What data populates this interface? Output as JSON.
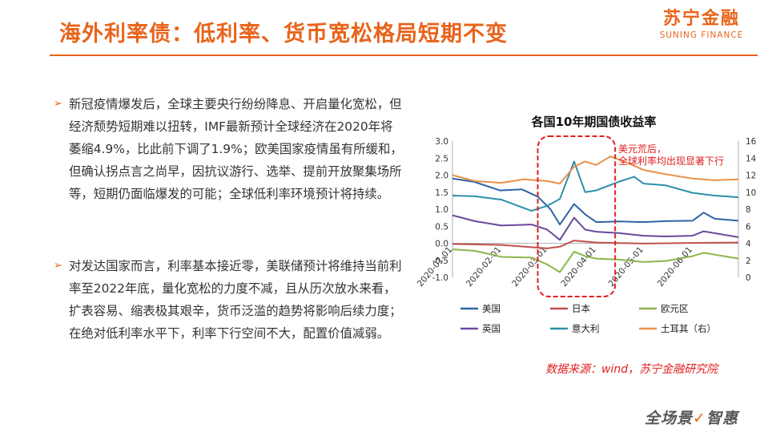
{
  "header": {
    "title": "海外利率债：低利率、货币宽松格局短期不变"
  },
  "logo": {
    "cn": "苏宁金融",
    "en": "SUNING FINANCE"
  },
  "text": {
    "p1": "新冠疫情爆发后，全球主要央行纷纷降息、开启量化宽松，但经济颓势短期难以扭转，IMF最新预计全球经济在2020年将萎缩4.9%，比此前下调了1.9%；欧美国家疫情虽有所缓和，但确认拐点言之尚早，因抗议游行、选举、提前开放聚集场所等，短期仍面临爆发的可能；全球低利率环境预计将持续。",
    "p2": "对发达国家而言，利率基本接近零，美联储预计将维持当前利率至2022年底，量化宽松的力度不减，且从历次放水来看，扩表容易、缩表极其艰辛，货币泛滥的趋势将影响后续力度；在绝对低利率水平下，利率下行空间不大，配置价值减弱。",
    "bullet": "➢"
  },
  "chart_data": {
    "type": "line",
    "title": "各国10年期国债收益率",
    "x_start": "2020-01-01",
    "x_end": "2020-06-30",
    "xticks": [
      "2020-01-01",
      "2020-02-01",
      "2020-03-01",
      "2020-04-01",
      "2020-05-01",
      "2020-06-01"
    ],
    "ylim_left": [
      -1.0,
      3.0
    ],
    "yticks_left": [
      "3.0",
      "2.5",
      "2.0",
      "1.5",
      "1.0",
      "0.5",
      "0.0",
      "-0.5",
      "-1.0"
    ],
    "ylim_right": [
      0,
      16
    ],
    "yticks_right": [
      "16",
      "14",
      "12",
      "10",
      "8",
      "6",
      "4",
      "2",
      "0"
    ],
    "annotation": "美元荒后，全球利率均出现显著下行",
    "highlight_range": [
      "2020-02-24",
      "2020-04-13"
    ],
    "series": [
      {
        "name": "美国",
        "color": "#2e64a6",
        "axis": "left",
        "points": [
          [
            "2020-01-01",
            1.9
          ],
          [
            "2020-01-15",
            1.8
          ],
          [
            "2020-01-31",
            1.55
          ],
          [
            "2020-02-14",
            1.58
          ],
          [
            "2020-02-24",
            1.37
          ],
          [
            "2020-03-03",
            1.0
          ],
          [
            "2020-03-09",
            0.55
          ],
          [
            "2020-03-18",
            1.15
          ],
          [
            "2020-03-25",
            0.85
          ],
          [
            "2020-04-01",
            0.62
          ],
          [
            "2020-04-15",
            0.64
          ],
          [
            "2020-05-01",
            0.62
          ],
          [
            "2020-05-15",
            0.65
          ],
          [
            "2020-06-01",
            0.66
          ],
          [
            "2020-06-08",
            0.9
          ],
          [
            "2020-06-15",
            0.72
          ],
          [
            "2020-06-30",
            0.66
          ]
        ]
      },
      {
        "name": "日本",
        "color": "#c0504d",
        "axis": "left",
        "points": [
          [
            "2020-01-01",
            -0.02
          ],
          [
            "2020-02-01",
            -0.05
          ],
          [
            "2020-03-01",
            -0.15
          ],
          [
            "2020-03-09",
            -0.1
          ],
          [
            "2020-03-18",
            0.08
          ],
          [
            "2020-04-01",
            0.02
          ],
          [
            "2020-05-01",
            -0.01
          ],
          [
            "2020-06-01",
            0.01
          ],
          [
            "2020-06-30",
            0.02
          ]
        ]
      },
      {
        "name": "欧元区",
        "color": "#8cb64a",
        "axis": "left",
        "points": [
          [
            "2020-01-01",
            -0.18
          ],
          [
            "2020-01-15",
            -0.22
          ],
          [
            "2020-02-01",
            -0.4
          ],
          [
            "2020-02-20",
            -0.42
          ],
          [
            "2020-03-01",
            -0.62
          ],
          [
            "2020-03-09",
            -0.85
          ],
          [
            "2020-03-18",
            -0.25
          ],
          [
            "2020-03-25",
            -0.38
          ],
          [
            "2020-04-01",
            -0.45
          ],
          [
            "2020-04-15",
            -0.48
          ],
          [
            "2020-05-01",
            -0.55
          ],
          [
            "2020-05-15",
            -0.52
          ],
          [
            "2020-06-01",
            -0.38
          ],
          [
            "2020-06-08",
            -0.28
          ],
          [
            "2020-06-30",
            -0.45
          ]
        ]
      },
      {
        "name": "英国",
        "color": "#6a4a9c",
        "axis": "left",
        "points": [
          [
            "2020-01-01",
            0.82
          ],
          [
            "2020-01-15",
            0.65
          ],
          [
            "2020-02-01",
            0.52
          ],
          [
            "2020-02-20",
            0.55
          ],
          [
            "2020-03-01",
            0.4
          ],
          [
            "2020-03-09",
            0.1
          ],
          [
            "2020-03-18",
            0.75
          ],
          [
            "2020-03-25",
            0.4
          ],
          [
            "2020-04-01",
            0.34
          ],
          [
            "2020-04-15",
            0.3
          ],
          [
            "2020-05-01",
            0.22
          ],
          [
            "2020-05-15",
            0.2
          ],
          [
            "2020-06-01",
            0.22
          ],
          [
            "2020-06-08",
            0.35
          ],
          [
            "2020-06-30",
            0.18
          ]
        ]
      },
      {
        "name": "意大利",
        "color": "#2e8fa8",
        "axis": "left",
        "points": [
          [
            "2020-01-01",
            1.4
          ],
          [
            "2020-01-15",
            1.38
          ],
          [
            "2020-02-01",
            1.28
          ],
          [
            "2020-02-20",
            0.95
          ],
          [
            "2020-03-01",
            1.1
          ],
          [
            "2020-03-09",
            1.3
          ],
          [
            "2020-03-18",
            2.4
          ],
          [
            "2020-03-25",
            1.5
          ],
          [
            "2020-04-01",
            1.55
          ],
          [
            "2020-04-15",
            1.8
          ],
          [
            "2020-04-25",
            1.95
          ],
          [
            "2020-05-01",
            1.75
          ],
          [
            "2020-05-15",
            1.7
          ],
          [
            "2020-06-01",
            1.48
          ],
          [
            "2020-06-15",
            1.4
          ],
          [
            "2020-06-30",
            1.35
          ]
        ]
      },
      {
        "name": "土耳其（右）",
        "color": "#e8914a",
        "axis": "right",
        "points": [
          [
            "2020-01-01",
            12.0
          ],
          [
            "2020-01-15",
            11.3
          ],
          [
            "2020-02-01",
            11.1
          ],
          [
            "2020-02-15",
            11.5
          ],
          [
            "2020-03-01",
            11.3
          ],
          [
            "2020-03-09",
            11.0
          ],
          [
            "2020-03-18",
            13.0
          ],
          [
            "2020-03-25",
            13.6
          ],
          [
            "2020-04-01",
            13.2
          ],
          [
            "2020-04-10",
            14.2
          ],
          [
            "2020-04-20",
            13.5
          ],
          [
            "2020-05-01",
            12.6
          ],
          [
            "2020-05-15",
            12.1
          ],
          [
            "2020-06-01",
            11.6
          ],
          [
            "2020-06-15",
            11.4
          ],
          [
            "2020-06-30",
            11.5
          ]
        ]
      }
    ]
  },
  "source": {
    "text": "数据来源：wind，苏宁金融研究院"
  },
  "footer": {
    "slogan": "全场景",
    "slogan_check": "✓",
    "slogan_rest": "智惠"
  }
}
